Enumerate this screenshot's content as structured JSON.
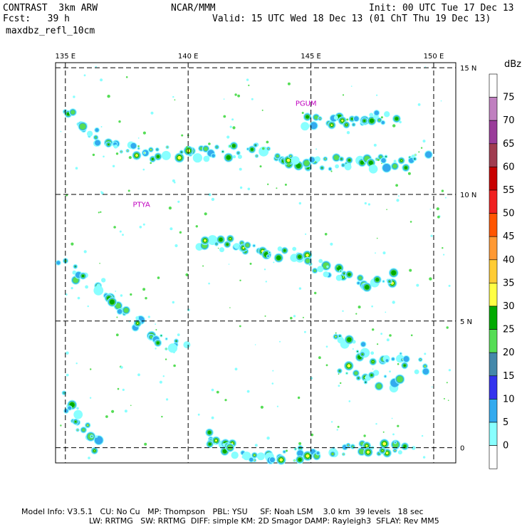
{
  "header": {
    "model_line": "CONTRAST  3km ARW",
    "fcst_line": "Fcst:   39 h",
    "field_name": "maxdbz_refl_10cm",
    "center": "NCAR/MMM",
    "init": "Init: 00 UTC Tue 17 Dec 13",
    "valid": "Valid: 15 UTC Wed 18 Dec 13 (01 ChT Thu 19 Dec 13)"
  },
  "map": {
    "lon_labels": [
      "135 E",
      "140 E",
      "145 E",
      "150 E"
    ],
    "lon_values": [
      135,
      140,
      145,
      150
    ],
    "lat_labels": [
      "15 N",
      "10 N",
      "5 N",
      "0"
    ],
    "lat_values": [
      15,
      10,
      5,
      0
    ],
    "lon_range": [
      134.6,
      150.9
    ],
    "lat_range": [
      -0.6,
      15.2
    ],
    "stations": [
      {
        "label": "PGUM",
        "lon": 144.8,
        "lat": 13.5
      },
      {
        "label": "PTYA",
        "lon": 138.1,
        "lat": 9.5
      }
    ],
    "station_color": "#c000c0"
  },
  "colorbar": {
    "unit": "dBz",
    "levels": [
      "75",
      "70",
      "65",
      "60",
      "55",
      "50",
      "45",
      "40",
      "35",
      "30",
      "25",
      "20",
      "15",
      "10",
      "5",
      "0"
    ],
    "colors": [
      "#ffffff",
      "#c080c0",
      "#9a3c9a",
      "#a03c50",
      "#c80000",
      "#f02020",
      "#ff5500",
      "#ff9933",
      "#ffcc33",
      "#ffff44",
      "#00aa00",
      "#55dd55",
      "#4488aa",
      "#3333ee",
      "#33aaee",
      "#88ffff",
      "#ffffff"
    ]
  },
  "footer": {
    "line1": "Model Info: V3.5.1   CU: No Cu   MP: Thompson   PBL: YSU     SF: Noah LSM    3.0 km  39 levels   18 sec",
    "line2": "LW: RRTMG   SW: RRTMG  DIFF: simple KM: 2D Smagor DAMP: Rayleigh3  SFLAY: Rev MM5"
  }
}
